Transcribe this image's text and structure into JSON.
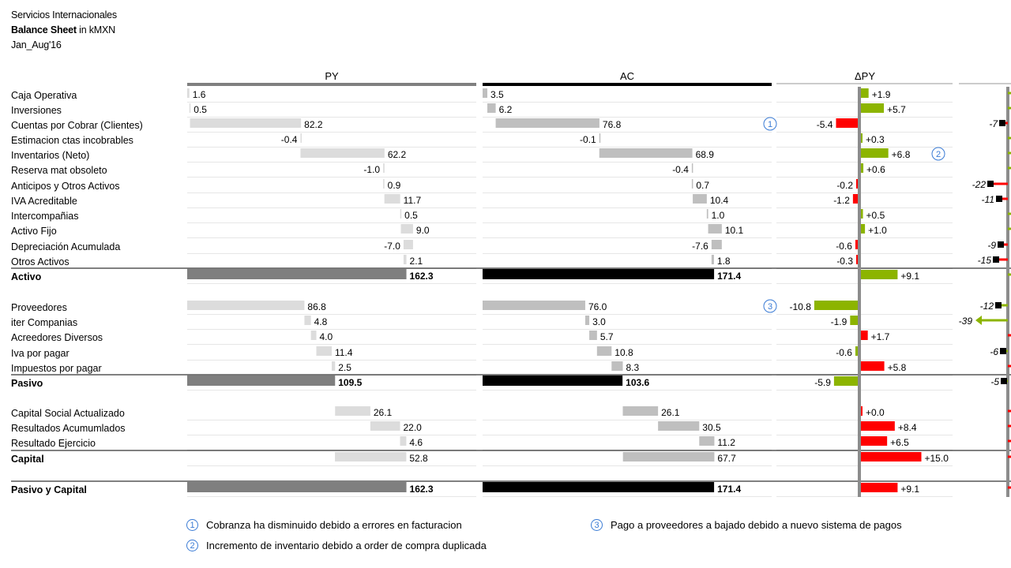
{
  "header": {
    "company": "Servicios Internacionales",
    "title_bold": "Balance Sheet",
    "title_rest": " in kMXN",
    "period": "Jan_Aug'16"
  },
  "columns": {
    "py": "PY",
    "ac": "AC",
    "dpy": "ΔPY"
  },
  "colors": {
    "py_bar": "#dcdcdc",
    "py_total": "#7f7f7f",
    "ac_bar": "#bfbfbf",
    "ac_total": "#000000",
    "positive": "#8cb400",
    "negative": "#ff0000",
    "axis": "#8c8c8c",
    "marker_ring": "#3a7bd5"
  },
  "chart_data": {
    "type": "waterfall",
    "title": "Balance Sheet in kMXN",
    "series_names": [
      "PY",
      "AC",
      "ΔPY"
    ],
    "rows": [
      {
        "label": "Caja Operativa",
        "py": 1.6,
        "ac": 3.5,
        "py_txt": "1.6",
        "ac_txt": "3.5",
        "d": 1.9,
        "d_txt": "+1.9",
        "pct": null,
        "pct_txt": ""
      },
      {
        "label": "Inversiones",
        "py": 0.5,
        "ac": 6.2,
        "py_txt": "0.5",
        "ac_txt": "6.2",
        "d": 5.7,
        "d_txt": "+5.7",
        "pct": null,
        "pct_txt": ""
      },
      {
        "label": "Cuentas por Cobrar (Clientes)",
        "py": 82.2,
        "ac": 76.8,
        "py_txt": "82.2",
        "ac_txt": "76.8",
        "d": -5.4,
        "d_txt": "-5.4",
        "pct": -7,
        "pct_txt": "-7",
        "marker": "1"
      },
      {
        "label": "Estimacion ctas incobrables",
        "py": -0.4,
        "ac": -0.1,
        "py_txt": "-0.4",
        "ac_txt": "-0.1",
        "d": 0.3,
        "d_txt": "+0.3",
        "pct": null,
        "pct_txt": ""
      },
      {
        "label": "Inventarios (Neto)",
        "py": 62.2,
        "ac": 68.9,
        "py_txt": "62.2",
        "ac_txt": "68.9",
        "d": 6.8,
        "d_txt": "+6.8",
        "pct": null,
        "pct_txt": "",
        "marker": "2"
      },
      {
        "label": "Reserva mat obsoleto",
        "py": -1.0,
        "ac": -0.4,
        "py_txt": "-1.0",
        "ac_txt": "-0.4",
        "d": 0.6,
        "d_txt": "+0.6",
        "pct": null,
        "pct_txt": ""
      },
      {
        "label": "Anticipos y Otros Activos",
        "py": 0.9,
        "ac": 0.7,
        "py_txt": "0.9",
        "ac_txt": "0.7",
        "d": -0.2,
        "d_txt": "-0.2",
        "pct": -22,
        "pct_txt": "-22"
      },
      {
        "label": "IVA Acreditable",
        "py": 11.7,
        "ac": 10.4,
        "py_txt": "11.7",
        "ac_txt": "10.4",
        "d": -1.2,
        "d_txt": "-1.2",
        "pct": -11,
        "pct_txt": "-11"
      },
      {
        "label": "Intercompañias",
        "py": 0.5,
        "ac": 1.0,
        "py_txt": "0.5",
        "ac_txt": "1.0",
        "d": 0.5,
        "d_txt": "+0.5",
        "pct": null,
        "pct_txt": ""
      },
      {
        "label": "Activo Fijo",
        "py": 9.0,
        "ac": 10.1,
        "py_txt": "9.0",
        "ac_txt": "10.1",
        "d": 1.0,
        "d_txt": "+1.0",
        "pct": null,
        "pct_txt": ""
      },
      {
        "label": "Depreciación Acumulada",
        "py": -7.0,
        "ac": -7.6,
        "py_txt": "-7.0",
        "ac_txt": "-7.6",
        "d": -0.6,
        "d_txt": "-0.6",
        "pct": -9,
        "pct_txt": "-9"
      },
      {
        "label": "Otros Activos",
        "py": 2.1,
        "ac": 1.8,
        "py_txt": "2.1",
        "ac_txt": "1.8",
        "d": -0.3,
        "d_txt": "-0.3",
        "pct": -15,
        "pct_txt": "-15"
      },
      {
        "label": "Activo",
        "total": true,
        "py": 162.3,
        "ac": 171.4,
        "py_txt": "162.3",
        "ac_txt": "171.4",
        "d": 9.1,
        "d_txt": "+9.1",
        "pct": null,
        "pct_txt": ""
      },
      {
        "label": "Proveedores",
        "py": 86.8,
        "ac": 76.0,
        "py_txt": "86.8",
        "ac_txt": "76.0",
        "d": -10.8,
        "d_txt": "-10.8",
        "pct": -12,
        "pct_txt": "-12",
        "marker": "3",
        "liab": true
      },
      {
        "label": "iter Companias",
        "py": 4.8,
        "ac": 3.0,
        "py_txt": "4.8",
        "ac_txt": "3.0",
        "d": -1.9,
        "d_txt": "-1.9",
        "pct": -39,
        "pct_txt": "-39",
        "liab": true
      },
      {
        "label": "Acreedores Diversos",
        "py": 4.0,
        "ac": 5.7,
        "py_txt": "4.0",
        "ac_txt": "5.7",
        "d": 1.7,
        "d_txt": "+1.7",
        "pct": null,
        "pct_txt": "",
        "liab": true
      },
      {
        "label": "Iva por pagar",
        "py": 11.4,
        "ac": 10.8,
        "py_txt": "11.4",
        "ac_txt": "10.8",
        "d": -0.6,
        "d_txt": "-0.6",
        "pct": -6,
        "pct_txt": "-6",
        "liab": true
      },
      {
        "label": "Impuestos por pagar",
        "py": 2.5,
        "ac": 8.3,
        "py_txt": "2.5",
        "ac_txt": "8.3",
        "d": 5.8,
        "d_txt": "+5.8",
        "pct": null,
        "pct_txt": "",
        "liab": true
      },
      {
        "label": "Pasivo",
        "total": true,
        "py": 109.5,
        "ac": 103.6,
        "py_txt": "109.5",
        "ac_txt": "103.6",
        "d": -5.9,
        "d_txt": "-5.9",
        "pct": -5,
        "pct_txt": "-5",
        "liab": true
      },
      {
        "label": "Capital Social Actualizado",
        "py": 26.1,
        "ac": 26.1,
        "py_txt": "26.1",
        "ac_txt": "26.1",
        "d": 0.0,
        "d_txt": "+0.0",
        "pct": null,
        "pct_txt": "",
        "liab": true
      },
      {
        "label": "Resultados Acumumlados",
        "py": 22.0,
        "ac": 30.5,
        "py_txt": "22.0",
        "ac_txt": "30.5",
        "d": 8.4,
        "d_txt": "+8.4",
        "pct": null,
        "pct_txt": "",
        "liab": true
      },
      {
        "label": "Resultado Ejercicio",
        "py": 4.6,
        "ac": 11.2,
        "py_txt": "4.6",
        "ac_txt": "11.2",
        "d": 6.5,
        "d_txt": "+6.5",
        "pct": null,
        "pct_txt": "",
        "liab": true
      },
      {
        "label": "Capital",
        "total": true,
        "py": 52.8,
        "ac": 67.7,
        "py_txt": "52.8",
        "ac_txt": "67.7",
        "d": 15.0,
        "d_txt": "+15.0",
        "pct": null,
        "pct_txt": "",
        "liab": true,
        "subtotal_light": true
      },
      {
        "label": "Pasivo y Capital",
        "total": true,
        "py": 162.3,
        "ac": 171.4,
        "py_txt": "162.3",
        "ac_txt": "171.4",
        "d": 9.1,
        "d_txt": "+9.1",
        "pct": null,
        "pct_txt": "",
        "liab": true
      }
    ]
  },
  "notes": [
    {
      "num": "1",
      "text": "Cobranza  ha disminuido  debido a errores en facturacion"
    },
    {
      "num": "2",
      "text": "Incremento  de inventario  debido a order de compra duplicada"
    },
    {
      "num": "3",
      "text": "Pago a proveedores  a bajado debido a nuevo sistema de pagos"
    }
  ]
}
